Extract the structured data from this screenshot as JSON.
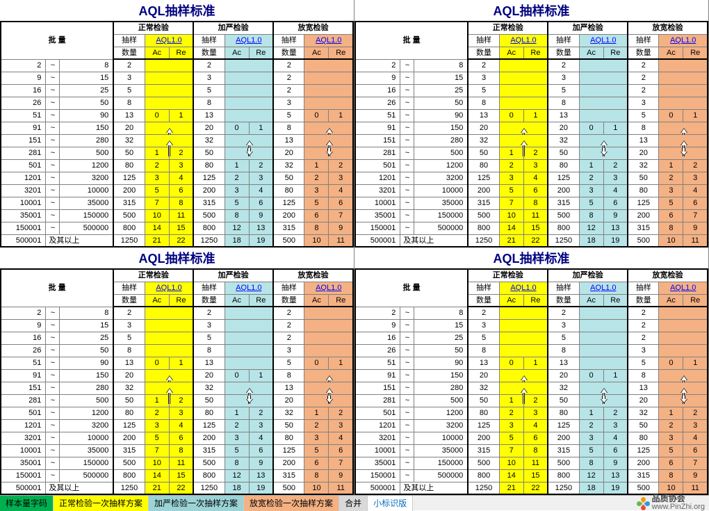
{
  "title": "AQL抽样标准",
  "headers": {
    "lot": "批    量",
    "normal": "正常检验",
    "tight": "加严检验",
    "reduced": "放宽检验",
    "sample": "抽样",
    "qty": "数量",
    "aql": "AQL1.0",
    "ac": "Ac",
    "re": "Re"
  },
  "colors": {
    "normal_bg": "#ffff00",
    "tight_bg": "#b7e4e7",
    "reduced_bg": "#f4b183",
    "grid": "#808080",
    "title": "#000080",
    "aql_link": "#0000ff"
  },
  "lot_final_label": "及其以上",
  "rows": [
    {
      "lo": "2",
      "hi": "8",
      "n1": "2",
      "ac1": "",
      "re1": "",
      "n2": "2",
      "ac2": "",
      "re2": "",
      "n3": "2",
      "ac3": "",
      "re3": ""
    },
    {
      "lo": "9",
      "hi": "15",
      "n1": "3",
      "ac1": "",
      "re1": "",
      "n2": "3",
      "ac2": "",
      "re2": "",
      "n3": "2",
      "ac3": "",
      "re3": ""
    },
    {
      "lo": "16",
      "hi": "25",
      "n1": "5",
      "ac1": "",
      "re1": "",
      "n2": "5",
      "ac2": "",
      "re2": "",
      "n3": "2",
      "ac3": "",
      "re3": ""
    },
    {
      "lo": "26",
      "hi": "50",
      "n1": "8",
      "ac1": "",
      "re1": "",
      "n2": "8",
      "ac2": "",
      "re2": "",
      "n3": "3",
      "ac3": "",
      "re3": ""
    },
    {
      "lo": "51",
      "hi": "90",
      "n1": "13",
      "ac1": "0",
      "re1": "1",
      "n2": "13",
      "ac2": "",
      "re2": "",
      "n3": "5",
      "ac3": "0",
      "re3": "1"
    },
    {
      "lo": "91",
      "hi": "150",
      "n1": "20",
      "ac1": "",
      "re1": "",
      "n2": "20",
      "ac2": "0",
      "re2": "1",
      "n3": "8",
      "ac3": "",
      "re3": ""
    },
    {
      "lo": "151",
      "hi": "280",
      "n1": "32",
      "ac1": "",
      "re1": "",
      "n2": "32",
      "ac2": "",
      "re2": "",
      "n3": "13",
      "ac3": "",
      "re3": ""
    },
    {
      "lo": "281",
      "hi": "500",
      "n1": "50",
      "ac1": "1",
      "re1": "2",
      "n2": "50",
      "ac2": "",
      "re2": "",
      "n3": "20",
      "ac3": "",
      "re3": ""
    },
    {
      "lo": "501",
      "hi": "1200",
      "n1": "80",
      "ac1": "2",
      "re1": "3",
      "n2": "80",
      "ac2": "1",
      "re2": "2",
      "n3": "32",
      "ac3": "1",
      "re3": "2"
    },
    {
      "lo": "1201",
      "hi": "3200",
      "n1": "125",
      "ac1": "3",
      "re1": "4",
      "n2": "125",
      "ac2": "2",
      "re2": "3",
      "n3": "50",
      "ac3": "2",
      "re3": "3"
    },
    {
      "lo": "3201",
      "hi": "10000",
      "n1": "200",
      "ac1": "5",
      "re1": "6",
      "n2": "200",
      "ac2": "3",
      "re2": "4",
      "n3": "80",
      "ac3": "3",
      "re3": "4"
    },
    {
      "lo": "10001",
      "hi": "35000",
      "n1": "315",
      "ac1": "7",
      "re1": "8",
      "n2": "315",
      "ac2": "5",
      "re2": "6",
      "n3": "125",
      "ac3": "5",
      "re3": "6"
    },
    {
      "lo": "35001",
      "hi": "150000",
      "n1": "500",
      "ac1": "10",
      "re1": "11",
      "n2": "500",
      "ac2": "8",
      "re2": "9",
      "n3": "200",
      "ac3": "6",
      "re3": "7"
    },
    {
      "lo": "150001",
      "hi": "500000",
      "n1": "800",
      "ac1": "14",
      "re1": "15",
      "n2": "800",
      "ac2": "12",
      "re2": "13",
      "n3": "315",
      "ac3": "8",
      "re3": "9"
    },
    {
      "lo": "500001",
      "hi": "及其以上",
      "n1": "1250",
      "ac1": "21",
      "re1": "22",
      "n2": "1250",
      "ac2": "18",
      "re2": "19",
      "n3": "500",
      "ac3": "10",
      "re3": "11"
    }
  ],
  "arrows": {
    "normal_down_row": 4,
    "normal_up_rows": [
      5,
      6
    ],
    "normal_smdown_row": 7,
    "tight_down_row": 5,
    "tight_smdown_row": 7,
    "reduced_down_row": 4,
    "reduced_up_rows": [
      5,
      6
    ],
    "reduced_smdown_row": 7
  },
  "tabs": [
    {
      "label": "样本量字码",
      "cls": "green"
    },
    {
      "label": "正常检验一次抽样方案",
      "cls": "yellow"
    },
    {
      "label": "加严检验一次抽样方案",
      "cls": "cyan"
    },
    {
      "label": "放宽检验一次抽样方案",
      "cls": "orange"
    },
    {
      "label": "合并",
      "cls": "gray"
    },
    {
      "label": "小标识版",
      "cls": "active"
    }
  ],
  "logo": {
    "title": "品质协会",
    "url": "www.PinZhi.org"
  }
}
